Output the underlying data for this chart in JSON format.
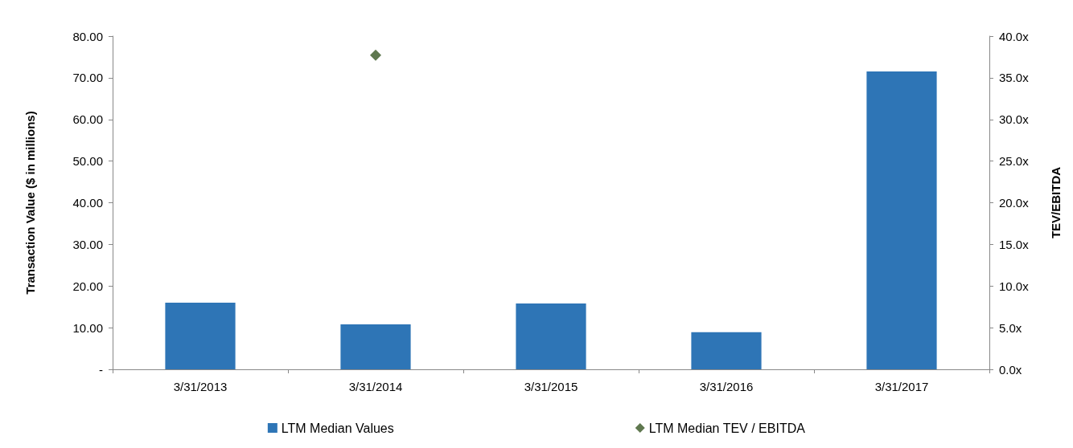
{
  "chart_data": {
    "type": "bar",
    "ylabel": "Transaction Value ($ in millions)",
    "y2label": "TEV/EBITDA",
    "categories": [
      "3/31/2013",
      "3/31/2014",
      "3/31/2015",
      "3/31/2016",
      "3/31/2017"
    ],
    "series": [
      {
        "name": "LTM Median Values",
        "color": "#2e75b6",
        "values": [
          16.0,
          10.8,
          15.8,
          8.9,
          71.5
        ]
      },
      {
        "name": "LTM Median TEV / EBITDA",
        "type": "scatter",
        "axis": "y2",
        "marker": "diamond",
        "color": "#375623",
        "values": [
          null,
          37.7,
          null,
          null,
          null
        ]
      }
    ],
    "ylim": [
      0,
      80
    ],
    "yticks": [
      {
        "value": 0,
        "label": "-"
      },
      {
        "value": 10,
        "label": "10.00"
      },
      {
        "value": 20,
        "label": "20.00"
      },
      {
        "value": 30,
        "label": "30.00"
      },
      {
        "value": 40,
        "label": "40.00"
      },
      {
        "value": 50,
        "label": "50.00"
      },
      {
        "value": 60,
        "label": "60.00"
      },
      {
        "value": 70,
        "label": "70.00"
      },
      {
        "value": 80,
        "label": "80.00"
      }
    ],
    "y2lim": [
      0,
      40
    ],
    "y2ticks": [
      {
        "value": 0,
        "label": "0.0x"
      },
      {
        "value": 5,
        "label": "5.0x"
      },
      {
        "value": 10,
        "label": "10.0x"
      },
      {
        "value": 15,
        "label": "15.0x"
      },
      {
        "value": 20,
        "label": "20.0x"
      },
      {
        "value": 25,
        "label": "25.0x"
      },
      {
        "value": 30,
        "label": "30.0x"
      },
      {
        "value": 35,
        "label": "35.0x"
      },
      {
        "value": 40,
        "label": "40.0x"
      }
    ],
    "grid": false,
    "legend": "bottom"
  }
}
